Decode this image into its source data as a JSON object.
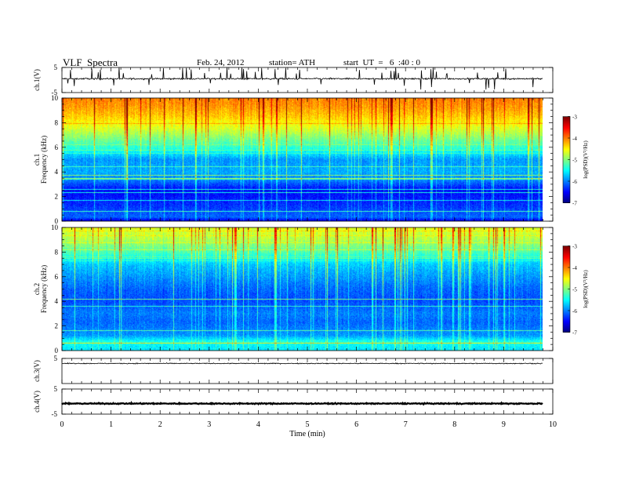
{
  "header": {
    "title": "VLF  Spectra",
    "date": "Feb. 24, 2012",
    "station": "station= ATH",
    "start": "start  UT  =   6  :40 : 0"
  },
  "chart_data": [
    {
      "type": "line",
      "panel": "ch1-waveform",
      "ylabel": "ch.1(V)",
      "ylim": [
        -5,
        5
      ],
      "yticks": [
        5,
        -5
      ],
      "xlim": [
        0,
        10
      ],
      "baseline_v": 0.5,
      "noise_amp_v": 0.5,
      "spike_count": 60,
      "color": "#000000"
    },
    {
      "type": "heatmap",
      "panel": "ch1-spectrogram",
      "ylabel": [
        "ch.1",
        "Frequency  (kHz)"
      ],
      "ylim": [
        0,
        10
      ],
      "yticks": [
        0,
        2,
        4,
        6,
        8,
        10
      ],
      "xlim": [
        0,
        9.8
      ],
      "colorbar": {
        "label": "log(PSD)(V²/Hz)",
        "range": [
          -7,
          -3
        ],
        "ticks": [
          "-3",
          "-4",
          "-5",
          "-6",
          "-7"
        ]
      },
      "profile": [
        [
          0,
          -6.6
        ],
        [
          0.3,
          -6.1
        ],
        [
          1.2,
          -6.3
        ],
        [
          2.5,
          -6.5
        ],
        [
          3.3,
          -6.0
        ],
        [
          4.0,
          -5.8
        ],
        [
          5.0,
          -5.9
        ],
        [
          5.8,
          -5.4
        ],
        [
          6.5,
          -5.1
        ],
        [
          7.4,
          -4.7
        ],
        [
          8.5,
          -4.3
        ],
        [
          9.3,
          -4.1
        ],
        [
          10,
          -4.0
        ]
      ]
    },
    {
      "type": "heatmap",
      "panel": "ch2-spectrogram",
      "ylabel": [
        "ch.2",
        "Frequency  (kHz)"
      ],
      "ylim": [
        0,
        10
      ],
      "yticks": [
        0,
        2,
        4,
        6,
        8,
        10
      ],
      "xlim": [
        0,
        9.8
      ],
      "colorbar": {
        "label": "log(PSD)(V²/Hz)",
        "range": [
          -7,
          -3
        ],
        "ticks": [
          "-3",
          "-4",
          "-5",
          "-6",
          "-7"
        ]
      },
      "profile": [
        [
          0,
          -5.6
        ],
        [
          0.4,
          -5.5
        ],
        [
          0.7,
          -5.4
        ],
        [
          1.2,
          -5.9
        ],
        [
          2.3,
          -6.1
        ],
        [
          3.0,
          -6.0
        ],
        [
          4.0,
          -6.2
        ],
        [
          5.0,
          -6.1
        ],
        [
          6.0,
          -5.9
        ],
        [
          7.0,
          -5.7
        ],
        [
          8.0,
          -5.2
        ],
        [
          9.0,
          -4.8
        ],
        [
          10,
          -4.6
        ]
      ]
    },
    {
      "type": "line",
      "panel": "ch3-waveform",
      "ylabel": "ch.3(V)",
      "ylim": [
        -5,
        5
      ],
      "yticks": [
        5
      ],
      "xlim": [
        0,
        10
      ],
      "baseline_v": 3,
      "noise_amp_v": 0.3,
      "spike_count": 0,
      "color": "#000000"
    },
    {
      "type": "line",
      "panel": "ch4-waveform",
      "ylabel": "ch.4(V)",
      "ylim": [
        -5,
        5
      ],
      "yticks": [
        5,
        -5
      ],
      "xlim": [
        0,
        10
      ],
      "baseline_v": -0.8,
      "noise_amp_v": 0.35,
      "spike_count": 0,
      "color": "#000000"
    }
  ],
  "x_axis": {
    "label": "Time  (min)",
    "ticks": [
      "0",
      "1",
      "2",
      "3",
      "4",
      "5",
      "6",
      "7",
      "8",
      "9",
      "10"
    ]
  }
}
